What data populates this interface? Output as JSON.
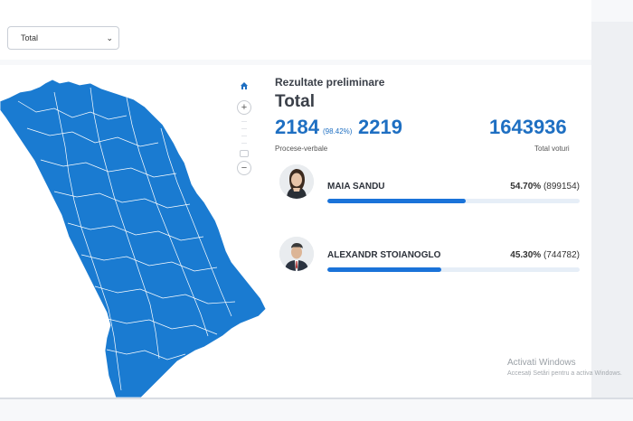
{
  "filter": {
    "selected": "Total"
  },
  "results": {
    "heading": "Rezultate preliminare",
    "title": "Total",
    "processed": "2184",
    "processed_pct": "(98.42%)",
    "total_pv": "2219",
    "pv_label": "Procese-verbale",
    "total_votes": "1643936",
    "votes_label": "Total voturi"
  },
  "candidates": [
    {
      "name": "MAIA SANDU",
      "pct": "54.70%",
      "votes": "(899154)",
      "share": 0.547
    },
    {
      "name": "ALEXANDR STOIANOGLO",
      "pct": "45.30%",
      "votes": "(744782)",
      "share": 0.453
    }
  ],
  "map_controls": {
    "home": "home-icon",
    "zoom_in": "+",
    "zoom_out": "−"
  },
  "windows_watermark": {
    "title": "Activati Windows",
    "subtitle": "Accesați Setări pentru a activa Windows."
  },
  "colors": {
    "accent": "#1e6fc2",
    "map_fill": "#1a7bd1",
    "bar": "#1a73d9"
  }
}
